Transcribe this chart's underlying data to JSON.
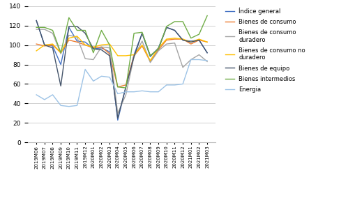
{
  "x_labels": [
    "2019M06",
    "2019M07",
    "2019M08",
    "2019M09",
    "2019M10",
    "2019M11",
    "2019M12",
    "2020M01",
    "2020M02",
    "2020M03",
    "2020M04",
    "2020M05",
    "2020M06",
    "2020M07",
    "2020M08",
    "2020M09",
    "2020M10",
    "2020M11",
    "2020M12",
    "2021M01",
    "2021M02",
    "2021M03"
  ],
  "series": {
    "Índice general": [
      125,
      100,
      99,
      80,
      118,
      104,
      103,
      96,
      97,
      93,
      23,
      57,
      90,
      112,
      88,
      97,
      118,
      115,
      105,
      104,
      105,
      92
    ],
    "Bienes de consumo": [
      101,
      99,
      100,
      92,
      105,
      103,
      100,
      97,
      98,
      91,
      57,
      59,
      89,
      99,
      83,
      95,
      105,
      106,
      106,
      101,
      105,
      103
    ],
    "Bienes de consumo\nduradero": [
      116,
      116,
      112,
      91,
      110,
      108,
      86,
      85,
      98,
      97,
      30,
      49,
      88,
      104,
      82,
      94,
      101,
      102,
      77,
      85,
      90,
      83
    ],
    "Bienes de consumo no\nduradero": [
      94,
      100,
      101,
      92,
      107,
      109,
      100,
      98,
      100,
      101,
      89,
      89,
      90,
      100,
      84,
      97,
      106,
      107,
      106,
      103,
      106,
      103
    ],
    "Bienes de equipo": [
      125,
      100,
      97,
      58,
      119,
      119,
      112,
      96,
      95,
      89,
      25,
      57,
      88,
      112,
      89,
      96,
      118,
      115,
      105,
      103,
      105,
      92
    ],
    "Bienes intermedios": [
      118,
      118,
      115,
      92,
      128,
      115,
      115,
      92,
      115,
      100,
      57,
      56,
      112,
      113,
      89,
      96,
      119,
      124,
      124,
      107,
      111,
      130
    ],
    "Energia": [
      49,
      44,
      49,
      38,
      37,
      38,
      75,
      63,
      68,
      67,
      50,
      52,
      52,
      53,
      52,
      52,
      59,
      59,
      60,
      85,
      85,
      84
    ]
  },
  "colors": {
    "Índice general": "#4472C4",
    "Bienes de consumo": "#ED7D31",
    "Bienes de consumo\nduradero": "#A5A5A5",
    "Bienes de consumo no\nduradero": "#FFC000",
    "Bienes de equipo": "#44546A",
    "Bienes intermedios": "#70AD47",
    "Energia": "#9DC3E6"
  },
  "ylim": [
    0,
    140
  ],
  "yticks": [
    0,
    20,
    40,
    60,
    80,
    100,
    120,
    140
  ],
  "background_color": "#ffffff",
  "grid_color": "#d0d0d0"
}
